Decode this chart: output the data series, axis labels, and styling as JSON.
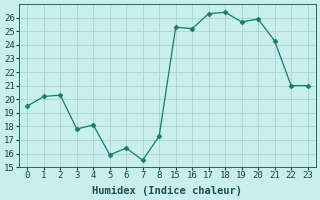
{
  "x_positions": [
    0,
    1,
    2,
    3,
    4,
    5,
    6,
    7,
    8,
    9,
    10,
    11,
    12,
    13,
    14,
    15,
    16,
    17
  ],
  "y": [
    19.5,
    20.2,
    20.3,
    17.8,
    18.1,
    15.9,
    16.4,
    15.5,
    17.3,
    25.3,
    25.2,
    26.3,
    26.4,
    25.7,
    25.9,
    24.3,
    21.0,
    21.0
  ],
  "tick_labels": [
    "0",
    "1",
    "2",
    "3",
    "4",
    "5",
    "6",
    "7",
    "8",
    "15",
    "16",
    "17",
    "18",
    "19",
    "20",
    "21",
    "22",
    "23"
  ],
  "line_color": "#1a7a6e",
  "marker": "D",
  "marker_size": 2.5,
  "bg_color": "#c8eeed",
  "grid_color": "#aad4d0",
  "xlabel": "Humidex (Indice chaleur)",
  "ylim": [
    15,
    27
  ],
  "xlim": [
    -0.5,
    23.5
  ],
  "yticks": [
    15,
    16,
    17,
    18,
    19,
    20,
    21,
    22,
    23,
    24,
    25,
    26
  ],
  "label_fontsize": 7.5,
  "tick_fontsize": 6.5
}
